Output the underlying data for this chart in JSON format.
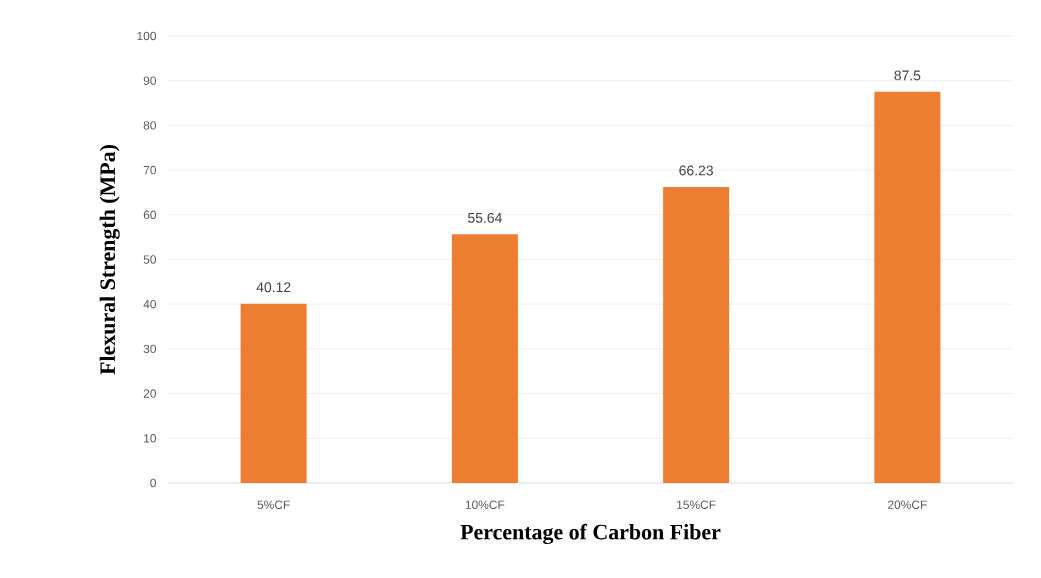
{
  "chart_data": {
    "type": "bar",
    "xlabel": "Percentage of Carbon Fiber",
    "ylabel": "Flexural Strength (MPa)",
    "categories": [
      "5%CF",
      "10%CF",
      "15%CF",
      "20%CF"
    ],
    "values": [
      40.12,
      55.64,
      66.23,
      87.5
    ],
    "color": "#ed7d31",
    "ylim": [
      0,
      100
    ],
    "yticks": [
      0,
      10,
      20,
      30,
      40,
      50,
      60,
      70,
      80,
      90,
      100
    ],
    "grid": "y",
    "data_labels": true
  }
}
